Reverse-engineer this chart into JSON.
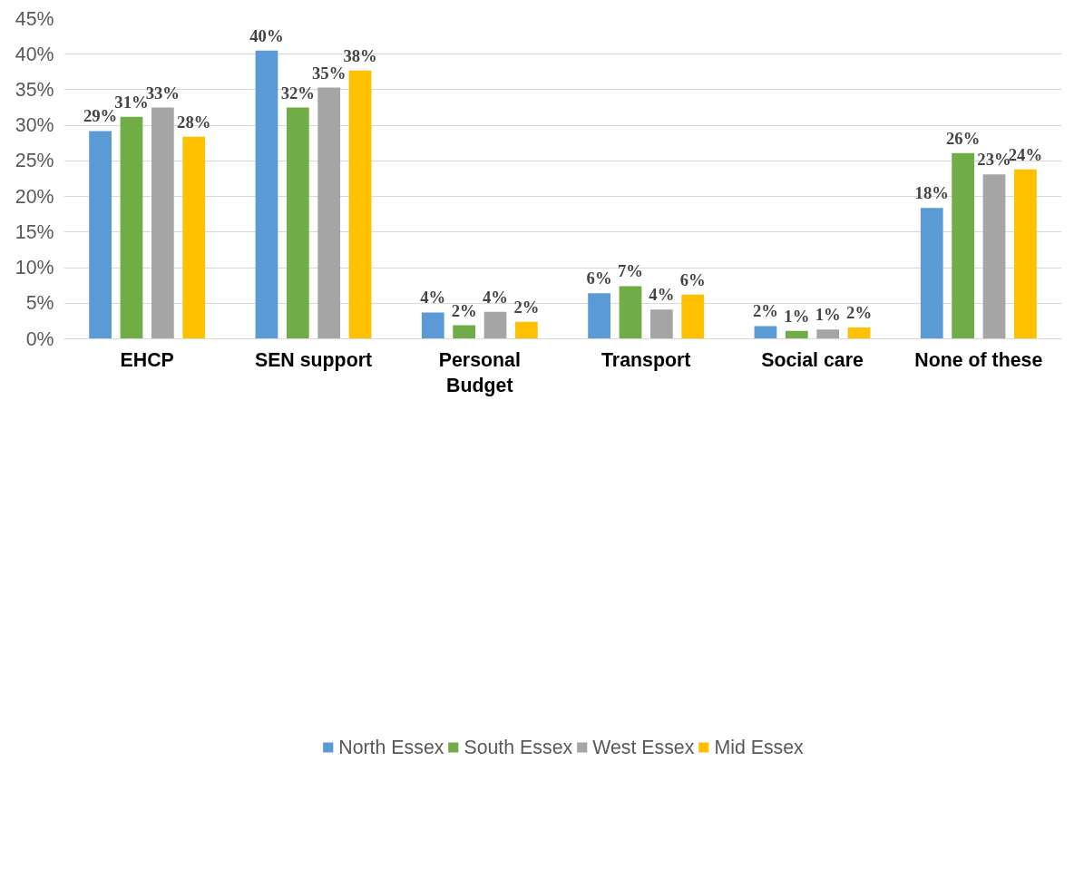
{
  "chart_data": {
    "type": "bar",
    "categories": [
      "EHCP",
      "SEN support",
      "Personal Budget",
      "Transport",
      "Social care",
      "None of these"
    ],
    "series": [
      {
        "name": "North Essex",
        "color": "#5b9bd5",
        "values": [
          29.2,
          40.5,
          3.7,
          6.4,
          1.8,
          18.4
        ],
        "value_labels": [
          "29%",
          "40%",
          "4%",
          "6%",
          "2%",
          "18%"
        ]
      },
      {
        "name": "South Essex",
        "color": "#70ad47",
        "values": [
          31.2,
          32.5,
          1.9,
          7.4,
          1.1,
          26.1
        ],
        "value_labels": [
          "31%",
          "32%",
          "2%",
          "7%",
          "1%",
          "26%"
        ]
      },
      {
        "name": "West Essex",
        "color": "#a5a5a5",
        "values": [
          32.5,
          35.3,
          3.8,
          4.1,
          1.3,
          23.1
        ],
        "value_labels": [
          "33%",
          "35%",
          "4%",
          "4%",
          "1%",
          "23%"
        ]
      },
      {
        "name": "Mid Essex",
        "color": "#ffc000",
        "values": [
          28.4,
          37.7,
          2.4,
          6.2,
          1.6,
          23.8
        ],
        "value_labels": [
          "28%",
          "38%",
          "2%",
          "6%",
          "2%",
          "24%"
        ]
      }
    ],
    "ylim": [
      0,
      45
    ],
    "yticks": [
      {
        "value": 0,
        "label": "0%"
      },
      {
        "value": 5,
        "label": "5%"
      },
      {
        "value": 10,
        "label": "10%"
      },
      {
        "value": 15,
        "label": "15%"
      },
      {
        "value": 20,
        "label": "20%"
      },
      {
        "value": 25,
        "label": "25%"
      },
      {
        "value": 30,
        "label": "30%"
      },
      {
        "value": 35,
        "label": "35%"
      },
      {
        "value": 40,
        "label": "40%"
      },
      {
        "value": 45,
        "label": "45%"
      }
    ],
    "grid": "y",
    "legend": "bottom"
  }
}
